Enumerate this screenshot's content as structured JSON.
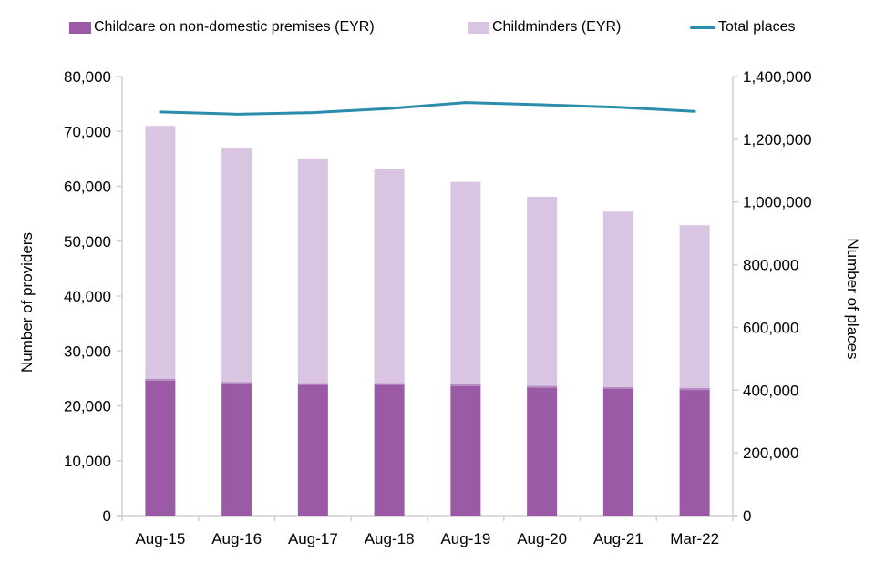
{
  "legend": [
    {
      "label": "Childcare on non-domestic premises (EYR)",
      "color": "#9B5AA5",
      "type": "square"
    },
    {
      "label": "Childminders (EYR)",
      "color": "#D9C5E2",
      "type": "square"
    },
    {
      "label": "Total places",
      "color": "#2B8CAB",
      "type": "line"
    }
  ],
  "chart_data": {
    "type": "bar",
    "subtype": "stacked-bars-with-secondary-axis-line",
    "categories": [
      "Aug-15",
      "Aug-16",
      "Aug-17",
      "Aug-18",
      "Aug-19",
      "Aug-20",
      "Aug-21",
      "Mar-22"
    ],
    "series": [
      {
        "name": "Childcare on non-domestic premises (EYR)",
        "render": "bar",
        "axis": "left",
        "color": "#9B5AA5",
        "values": [
          24900,
          24300,
          24100,
          24100,
          23900,
          23600,
          23400,
          23200
        ]
      },
      {
        "name": "Childminders (EYR)",
        "render": "bar",
        "axis": "left",
        "color": "#D9C5E2",
        "values": [
          46100,
          42700,
          41000,
          39000,
          36900,
          34500,
          32000,
          29700
        ]
      },
      {
        "name": "Total places",
        "render": "line",
        "axis": "right",
        "color": "#2B8CAB",
        "values": [
          1287000,
          1280000,
          1285000,
          1298000,
          1317000,
          1310000,
          1302000,
          1289000
        ]
      }
    ],
    "stacked_totals": [
      71000,
      67000,
      65100,
      63100,
      60800,
      58100,
      55400,
      52900
    ],
    "title": "",
    "xlabel": "",
    "ylabel_left": "Number of providers",
    "ylabel_right": "Number of places",
    "ylim_left": [
      0,
      80000
    ],
    "ytick_step_left": 10000,
    "ylim_right": [
      0,
      1400000
    ],
    "ytick_step_right": 200000,
    "grid": false,
    "legend_position": "top",
    "axis_color": "#D0D0D0",
    "bar_edge_color": "#B48BC2"
  }
}
